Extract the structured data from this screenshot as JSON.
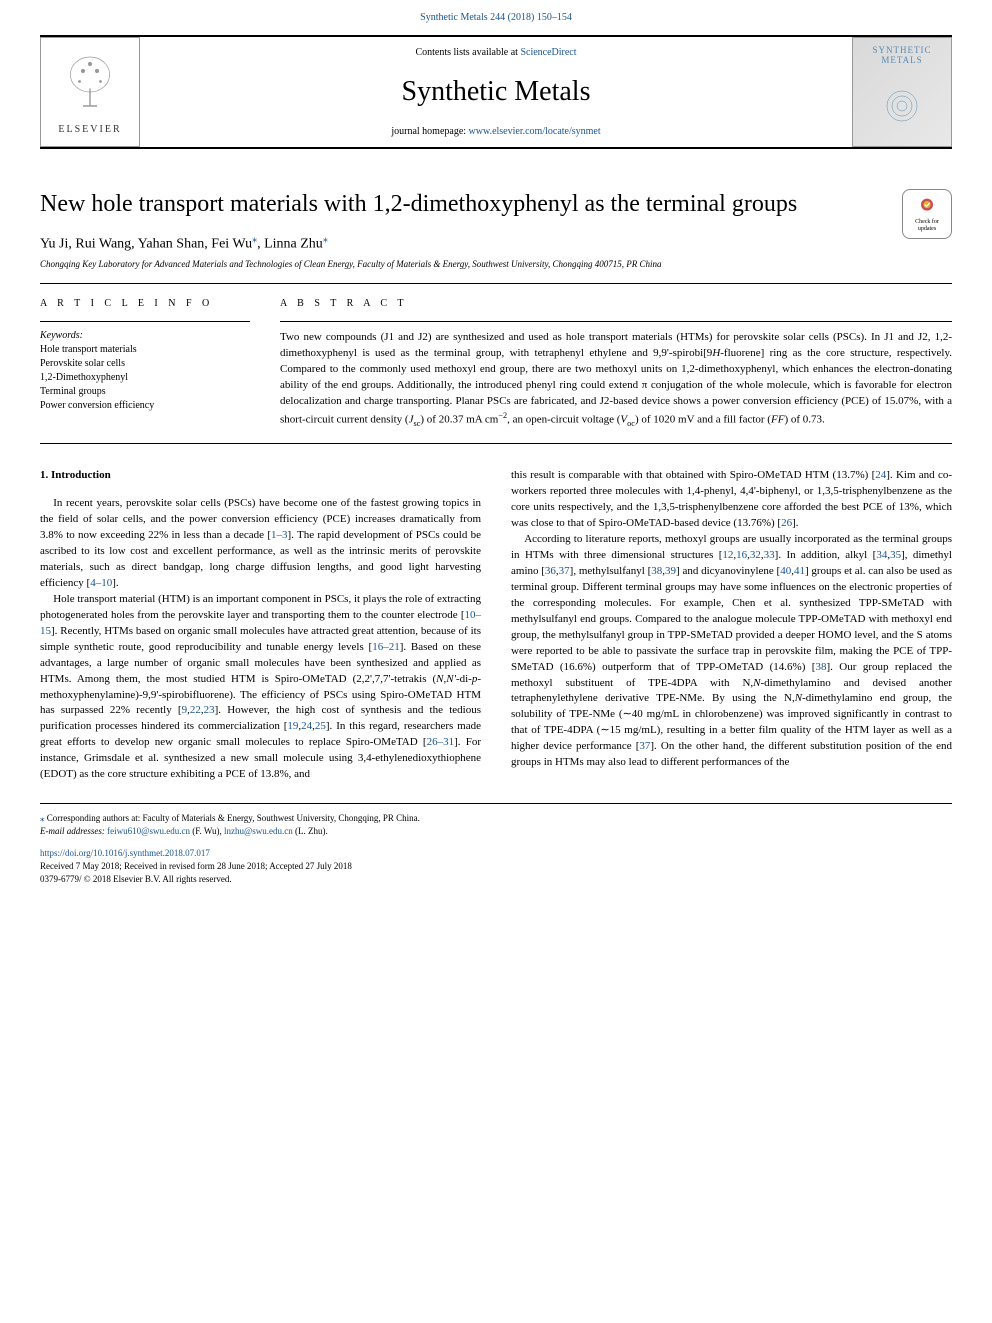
{
  "citation": "Synthetic Metals 244 (2018) 150–154",
  "banner": {
    "contents_prefix": "Contents lists available at ",
    "contents_link": "ScienceDirect",
    "journal_name": "Synthetic Metals",
    "homepage_prefix": "journal homepage: ",
    "homepage_link": "www.elsevier.com/locate/synmet",
    "elsevier_label": "ELSEVIER",
    "cover_title": "SYNTHETIC METALS"
  },
  "crossmark": {
    "label1": "Check for",
    "label2": "updates"
  },
  "article": {
    "title": "New hole transport materials with 1,2-dimethoxyphenyl as the terminal groups",
    "authors_html": "Yu Ji, Rui Wang, Yahan Shan, Fei Wu<sup class=\"star\">⁎</sup>, Linna Zhu<sup class=\"star\">⁎</sup>",
    "affiliation": "Chongqing Key Laboratory for Advanced Materials and Technologies of Clean Energy, Faculty of Materials & Energy, Southwest University, Chongqing 400715, PR China"
  },
  "info": {
    "article_info_label": "A R T I C L E  I N F O",
    "abstract_label": "A B S T R A C T",
    "keywords_label": "Keywords:",
    "keywords": [
      "Hole transport materials",
      "Perovskite solar cells",
      "1,2-Dimethoxyphenyl",
      "Terminal groups",
      "Power conversion efficiency"
    ],
    "abstract_html": "Two new compounds (J1 and J2) are synthesized and used as hole transport materials (HTMs) for perovskite solar cells (PSCs). In J1 and J2, 1,2-dimethoxyphenyl is used as the terminal group, with tetraphenyl ethylene and 9,9'-spirobi[9<i>H</i>-fluorene] ring as the core structure, respectively. Compared to the commonly used methoxyl end group, there are two methoxyl units on 1,2-dimethoxyphenyl, which enhances the electron-donating ability of the end groups. Additionally, the introduced phenyl ring could extend π conjugation of the whole molecule, which is favorable for electron delocalization and charge transporting. Planar PSCs are fabricated, and J2-based device shows a power conversion efficiency (PCE) of 15.07%, with a short-circuit current density (<i>J</i><sub>sc</sub>) of 20.37 mA cm<sup>−2</sup>, an open-circuit voltage (<i>V</i><sub>oc</sub>) of 1020 mV and a fill factor (<i>FF</i>) of 0.73."
  },
  "body": {
    "section_heading": "1. Introduction",
    "col1_paras": [
      "In recent years, perovskite solar cells (PSCs) have become one of the fastest growing topics in the field of solar cells, and the power conversion efficiency (PCE) increases dramatically from 3.8% to now exceeding 22% in less than a decade [<span class=\"ref-link\">1–3</span>]. The rapid development of PSCs could be ascribed to its low cost and excellent performance, as well as the intrinsic merits of perovskite materials, such as direct bandgap, long charge diffusion lengths, and good light harvesting efficiency [<span class=\"ref-link\">4–10</span>].",
      "Hole transport material (HTM) is an important component in PSCs, it plays the role of extracting photogenerated holes from the perovskite layer and transporting them to the counter electrode [<span class=\"ref-link\">10–15</span>]. Recently, HTMs based on organic small molecules have attracted great attention, because of its simple synthetic route, good reproducibility and tunable energy levels [<span class=\"ref-link\">16–21</span>]. Based on these advantages, a large number of organic small molecules have been synthesized and applied as HTMs. Among them, the most studied HTM is Spiro-OMeTAD (2,2',7,7'-tetrakis (<i>N,N'</i>-di-<i>p</i>-methoxyphenylamine)-9,9'-spirobifluorene). The efficiency of PSCs using Spiro-OMeTAD HTM has surpassed 22% recently [<span class=\"ref-link\">9</span>,<span class=\"ref-link\">22</span>,<span class=\"ref-link\">23</span>]. However, the high cost of synthesis and the tedious purification processes hindered its commercialization [<span class=\"ref-link\">19</span>,<span class=\"ref-link\">24</span>,<span class=\"ref-link\">25</span>]. In this regard, researchers made great efforts to develop new organic small molecules to replace Spiro-OMeTAD [<span class=\"ref-link\">26–31</span>]. For instance, Grimsdale et al. synthesized a new small molecule using 3,4-ethylenedioxythiophene (EDOT) as the core structure exhibiting a PCE of 13.8%, and"
    ],
    "col2_paras": [
      "this result is comparable with that obtained with Spiro-OMeTAD HTM (13.7%) [<span class=\"ref-link\">24</span>]. Kim and co-workers reported three molecules with 1,4-phenyl, 4,4'-biphenyl, or 1,3,5-trisphenylbenzene as the core units respectively, and the 1,3,5-trisphenylbenzene core afforded the best PCE of 13%, which was close to that of Spiro-OMeTAD-based device (13.76%) [<span class=\"ref-link\">26</span>].",
      "According to literature reports, methoxyl groups are usually incorporated as the terminal groups in HTMs with three dimensional structures [<span class=\"ref-link\">12</span>,<span class=\"ref-link\">16</span>,<span class=\"ref-link\">32</span>,<span class=\"ref-link\">33</span>]. In addition, alkyl [<span class=\"ref-link\">34</span>,<span class=\"ref-link\">35</span>], dimethyl amino [<span class=\"ref-link\">36</span>,<span class=\"ref-link\">37</span>], methylsulfanyl [<span class=\"ref-link\">38</span>,<span class=\"ref-link\">39</span>] and dicyanovinylene [<span class=\"ref-link\">40</span>,<span class=\"ref-link\">41</span>] groups et al. can also be used as terminal group. Different terminal groups may have some influences on the electronic properties of the corresponding molecules. For example, Chen et al. synthesized TPP-SMeTAD with methylsulfanyl end groups. Compared to the analogue molecule TPP-OMeTAD with methoxyl end group, the methylsulfanyl group in TPP-SMeTAD provided a deeper HOMO level, and the S atoms were reported to be able to passivate the surface trap in perovskite film, making the PCE of TPP-SMeTAD (16.6%) outperform that of TPP-OMeTAD (14.6%) [<span class=\"ref-link\">38</span>]. Our group replaced the methoxyl substituent of TPE-4DPA with N,<i>N</i>-dimethylamino and devised another tetraphenylethylene derivative TPE-NMe. By using the N,<i>N</i>-dimethylamino end group, the solubility of TPE-NMe (∼40 mg/mL in chlorobenzene) was improved significantly in contrast to that of TPE-4DPA (∼15 mg/mL), resulting in a better film quality of the HTM layer as well as a higher device performance [<span class=\"ref-link\">37</span>]. On the other hand, the different substitution position of the end groups in HTMs may also lead to different performances of the"
    ]
  },
  "footer": {
    "corresponding": "Corresponding authors at: Faculty of Materials & Energy, Southwest University, Chongqing, PR China.",
    "email_label": "E-mail addresses:",
    "email1": "feiwu610@swu.edu.cn",
    "email1_name": "(F. Wu),",
    "email2": "lnzhu@swu.edu.cn",
    "email2_name": "(L. Zhu).",
    "doi": "https://doi.org/10.1016/j.synthmet.2018.07.017",
    "received": "Received 7 May 2018; Received in revised form 28 June 2018; Accepted 27 July 2018",
    "copyright": "0379-6779/ © 2018 Elsevier B.V. All rights reserved."
  },
  "colors": {
    "link": "#1a5490",
    "text": "#000000",
    "border": "#000000"
  }
}
